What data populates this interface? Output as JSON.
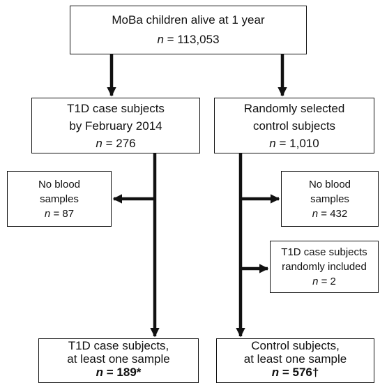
{
  "symbols": {
    "n": "n",
    "equals": "="
  },
  "nodes": [
    {
      "lines": [
        "MoBa children alive at 1 year"
      ],
      "count": "113,053"
    },
    {
      "lines": [
        "T1D case subjects",
        "by February 2014"
      ],
      "count": "276"
    },
    {
      "lines": [
        "Randomly selected",
        "control subjects"
      ],
      "count": "1,010"
    },
    {
      "lines": [
        "No blood",
        "samples"
      ],
      "count": "87"
    },
    {
      "lines": [
        "No blood",
        "samples"
      ],
      "count": "432"
    },
    {
      "lines": [
        "T1D case subjects",
        "randomly included"
      ],
      "count": "2"
    },
    {
      "lines": [
        "T1D case subjects,",
        "at least one sample"
      ],
      "count": "189*"
    },
    {
      "lines": [
        "Control subjects,",
        "at least one sample"
      ],
      "count": "576†"
    }
  ]
}
